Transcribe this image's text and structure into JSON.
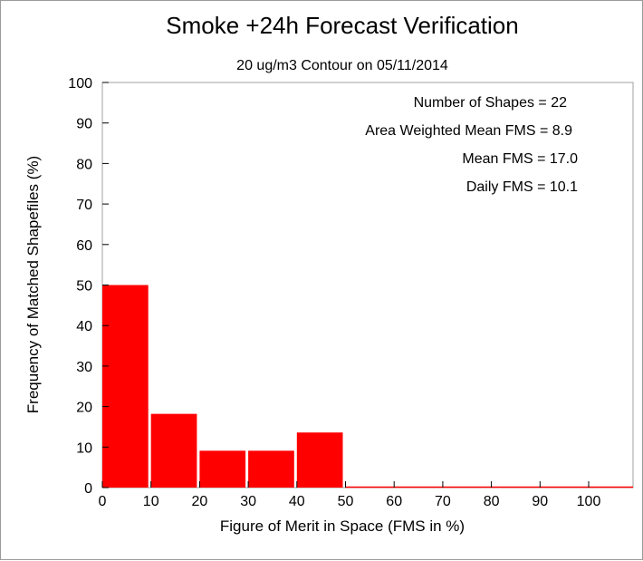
{
  "chart_data": {
    "type": "bar",
    "title": "Smoke +24h Forecast Verification",
    "subtitle": "20 ug/m3 Contour on 05/11/2014",
    "xlabel": "Figure of Merit in Space (FMS in %)",
    "ylabel": "Frequency of Matched Shapefiles (%)",
    "xlim": [
      0,
      110
    ],
    "ylim": [
      0,
      100
    ],
    "xticks": [
      0,
      10,
      20,
      30,
      40,
      50,
      60,
      70,
      80,
      90,
      100
    ],
    "yticks": [
      0,
      10,
      20,
      30,
      40,
      50,
      60,
      70,
      80,
      90,
      100
    ],
    "bin_width": 10,
    "bins": [
      {
        "start": 0,
        "end": 10,
        "value": 50.0
      },
      {
        "start": 10,
        "end": 20,
        "value": 18.2
      },
      {
        "start": 20,
        "end": 30,
        "value": 9.1
      },
      {
        "start": 30,
        "end": 40,
        "value": 9.1
      },
      {
        "start": 40,
        "end": 50,
        "value": 13.6
      },
      {
        "start": 50,
        "end": 60,
        "value": 0
      },
      {
        "start": 60,
        "end": 70,
        "value": 0
      },
      {
        "start": 70,
        "end": 80,
        "value": 0
      },
      {
        "start": 80,
        "end": 90,
        "value": 0
      },
      {
        "start": 90,
        "end": 100,
        "value": 0
      },
      {
        "start": 100,
        "end": 110,
        "value": 0
      }
    ],
    "bar_color": "#ff0000",
    "grid": false,
    "stats": [
      "Number of Shapes = 22",
      "Area Weighted Mean FMS = 8.9",
      "Mean FMS = 17.0",
      "Daily FMS = 10.1"
    ]
  }
}
